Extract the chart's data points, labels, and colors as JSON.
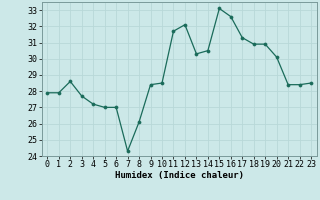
{
  "x": [
    0,
    1,
    2,
    3,
    4,
    5,
    6,
    7,
    8,
    9,
    10,
    11,
    12,
    13,
    14,
    15,
    16,
    17,
    18,
    19,
    20,
    21,
    22,
    23
  ],
  "y": [
    27.9,
    27.9,
    28.6,
    27.7,
    27.2,
    27.0,
    27.0,
    24.3,
    26.1,
    28.4,
    28.5,
    31.7,
    32.1,
    30.3,
    30.5,
    33.1,
    32.6,
    31.3,
    30.9,
    30.9,
    30.1,
    28.4,
    28.4,
    28.5
  ],
  "line_color": "#1a6b5a",
  "marker_color": "#1a6b5a",
  "bg_color": "#cce8e8",
  "grid_color": "#b8d8d8",
  "xlabel": "Humidex (Indice chaleur)",
  "xlim": [
    -0.5,
    23.5
  ],
  "ylim": [
    24,
    33.5
  ],
  "yticks": [
    24,
    25,
    26,
    27,
    28,
    29,
    30,
    31,
    32,
    33
  ],
  "xticks": [
    0,
    1,
    2,
    3,
    4,
    5,
    6,
    7,
    8,
    9,
    10,
    11,
    12,
    13,
    14,
    15,
    16,
    17,
    18,
    19,
    20,
    21,
    22,
    23
  ],
  "label_fontsize": 6.5,
  "tick_fontsize": 6.0
}
